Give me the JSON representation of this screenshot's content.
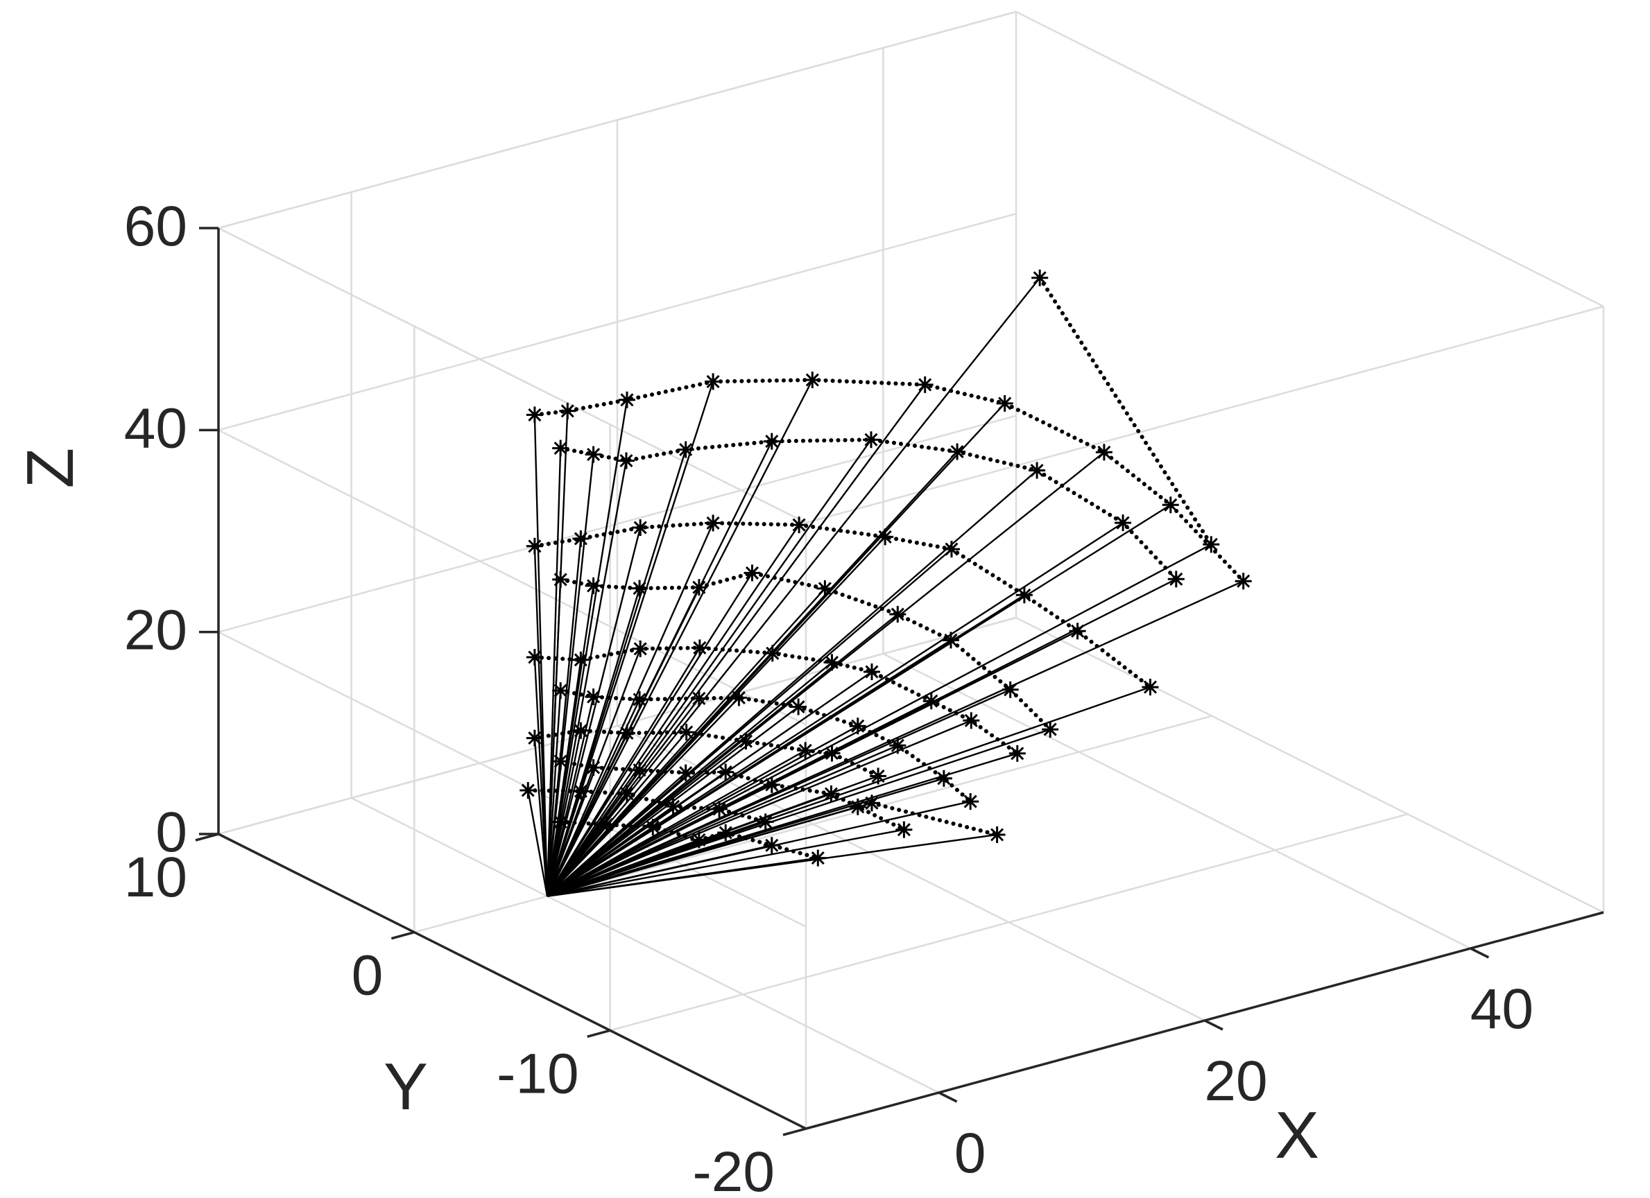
{
  "chart_data": {
    "type": "line",
    "projection": "3d",
    "xlabel": "X",
    "ylabel": "Y",
    "zlabel": "Z",
    "xlim": [
      -10,
      50
    ],
    "ylim": [
      -20,
      10
    ],
    "zlim": [
      0,
      60
    ],
    "xticks": [
      "0",
      "20",
      "40"
    ],
    "yticks": [
      "10",
      "0",
      "-10",
      "-20"
    ],
    "zticks": [
      "0",
      "20",
      "40",
      "60"
    ],
    "grid": true,
    "box": true,
    "origin": [
      0,
      0,
      0
    ],
    "line_color": "#000000",
    "grid_color": "#dcdcdc",
    "axis_color": "#262626",
    "marker": "*",
    "series": [
      {
        "style": "dotted",
        "points": [
          [
            1,
            0,
            44
          ],
          [
            2,
            -1,
            44
          ],
          [
            3,
            -2,
            44
          ],
          [
            6,
            -3,
            45
          ],
          [
            11,
            -4,
            45
          ],
          [
            17,
            -5,
            44
          ],
          [
            22,
            -6,
            42
          ],
          [
            28,
            -6,
            38
          ],
          [
            33,
            -7,
            32
          ],
          [
            37,
            -7,
            25
          ]
        ]
      },
      {
        "style": "dotted",
        "points": [
          [
            2,
            2,
            45
          ],
          [
            3,
            1,
            46
          ],
          [
            6,
            0,
            47
          ],
          [
            11,
            -1,
            48
          ],
          [
            17,
            -2,
            47
          ],
          [
            24,
            -3,
            45
          ],
          [
            30,
            -3,
            41
          ],
          [
            36,
            -4,
            35
          ],
          [
            41,
            -4,
            28
          ],
          [
            45,
            -5,
            20
          ]
        ]
      },
      {
        "style": "dotted",
        "points": [
          [
            1,
            0,
            31
          ],
          [
            2,
            -1,
            31
          ],
          [
            4,
            -2,
            31
          ],
          [
            7,
            -3,
            31
          ],
          [
            11,
            -3,
            31
          ],
          [
            15,
            -4,
            29
          ],
          [
            19,
            -5,
            26
          ],
          [
            23,
            -5,
            22
          ],
          [
            26,
            -6,
            17
          ],
          [
            29,
            -6,
            12
          ]
        ]
      },
      {
        "style": "dotted",
        "points": [
          [
            2,
            2,
            32
          ],
          [
            4,
            1,
            33
          ],
          [
            7,
            0,
            34
          ],
          [
            11,
            -1,
            34
          ],
          [
            16,
            -2,
            33
          ],
          [
            21,
            -3,
            31
          ],
          [
            26,
            -3,
            28
          ],
          [
            30,
            -4,
            23
          ],
          [
            34,
            -4,
            18
          ],
          [
            38,
            -5,
            12
          ]
        ]
      },
      {
        "style": "dotted",
        "points": [
          [
            1,
            0,
            20
          ],
          [
            2,
            -1,
            20
          ],
          [
            4,
            -2,
            20
          ],
          [
            7,
            -3,
            20
          ],
          [
            10,
            -3,
            19
          ],
          [
            13,
            -4,
            18
          ],
          [
            16,
            -5,
            16
          ],
          [
            19,
            -5,
            13
          ],
          [
            21,
            -6,
            10
          ],
          [
            23,
            -6,
            7
          ]
        ]
      },
      {
        "style": "dotted",
        "points": [
          [
            2,
            2,
            21
          ],
          [
            4,
            1,
            21
          ],
          [
            7,
            0,
            22
          ],
          [
            10,
            -1,
            22
          ],
          [
            14,
            -2,
            21
          ],
          [
            17,
            -3,
            20
          ],
          [
            20,
            -3,
            18
          ],
          [
            23,
            -4,
            15
          ],
          [
            26,
            -4,
            12
          ],
          [
            28,
            -5,
            9
          ]
        ]
      },
      {
        "style": "dotted",
        "points": [
          [
            1,
            0,
            13
          ],
          [
            2,
            -1,
            13
          ],
          [
            4,
            -2,
            13
          ],
          [
            6,
            -3,
            13
          ],
          [
            9,
            -3,
            12
          ],
          [
            11,
            -4,
            11
          ],
          [
            14,
            -5,
            10
          ],
          [
            16,
            -5,
            8
          ],
          [
            18,
            -6,
            6
          ]
        ]
      },
      {
        "style": "dotted",
        "points": [
          [
            2,
            2,
            13
          ],
          [
            4,
            1,
            14
          ],
          [
            6,
            0,
            14
          ],
          [
            9,
            -1,
            14
          ],
          [
            12,
            -2,
            13
          ],
          [
            15,
            -3,
            12
          ],
          [
            17,
            -3,
            11
          ],
          [
            19,
            -4,
            9
          ]
        ]
      },
      {
        "style": "dotted",
        "points": [
          [
            1,
            0,
            7
          ],
          [
            3,
            -1,
            7
          ],
          [
            5,
            -2,
            7
          ],
          [
            7,
            -3,
            6
          ],
          [
            9,
            -3,
            6
          ],
          [
            11,
            -4,
            5
          ],
          [
            13,
            -5,
            4
          ]
        ]
      },
      {
        "style": "dotted",
        "points": [
          [
            1.5,
            2,
            8
          ],
          [
            4,
            1,
            8
          ],
          [
            6,
            0,
            8
          ],
          [
            8,
            -1,
            7
          ],
          [
            10,
            -2,
            7
          ],
          [
            12,
            -3,
            6
          ]
        ]
      },
      {
        "style": "dotted",
        "points": [
          [
            40,
            2,
            45
          ],
          [
            47,
            -2,
            20
          ]
        ]
      },
      {
        "style": "dotted",
        "points": [
          [
            20,
            -3,
            5
          ],
          [
            25,
            -6,
            3
          ]
        ]
      }
    ]
  }
}
